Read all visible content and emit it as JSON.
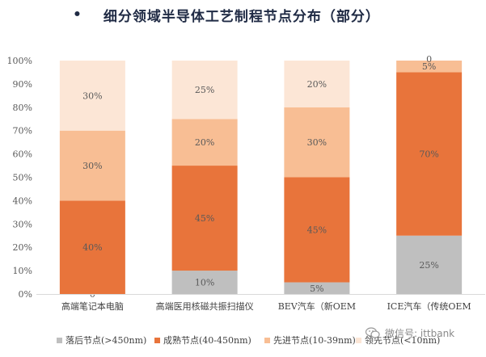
{
  "title": {
    "bullet": "•",
    "text": "细分领域半导体工艺制程节点分布（部分）"
  },
  "watermark": {
    "text": "微信号: ittbank",
    "icon": "wechat-icon"
  },
  "chart_data": {
    "type": "bar",
    "stacked": true,
    "percent": true,
    "ylim": [
      0,
      100
    ],
    "yticks": [
      "0%",
      "10%",
      "20%",
      "30%",
      "40%",
      "50%",
      "60%",
      "70%",
      "80%",
      "90%",
      "100%"
    ],
    "grid": false,
    "legend_position": "bottom",
    "categories": [
      "高端笔记本电脑",
      "高端医用核磁共振扫描仪",
      "BEV汽车（新OEM",
      "ICE汽车（传统OEM"
    ],
    "series": [
      {
        "name": "落后节点(>450nm)",
        "color": "#bfbfbf",
        "values": [
          0,
          10,
          5,
          25
        ],
        "labels": [
          "0",
          "10%",
          "5%",
          "25%"
        ]
      },
      {
        "name": "成熟节点(40-450nm)",
        "color": "#e8743b",
        "values": [
          40,
          45,
          45,
          70
        ],
        "labels": [
          "40%",
          "45%",
          "45%",
          "70%"
        ]
      },
      {
        "name": "先进节点(10-39nm)",
        "color": "#f8be94",
        "values": [
          30,
          20,
          30,
          5
        ],
        "labels": [
          "30%",
          "20%",
          "30%",
          "5%"
        ]
      },
      {
        "name": "领先节点(<10nm)",
        "color": "#fce6d6",
        "values": [
          30,
          25,
          20,
          0
        ],
        "labels": [
          "30%",
          "25%",
          "20%",
          "0"
        ]
      }
    ]
  }
}
